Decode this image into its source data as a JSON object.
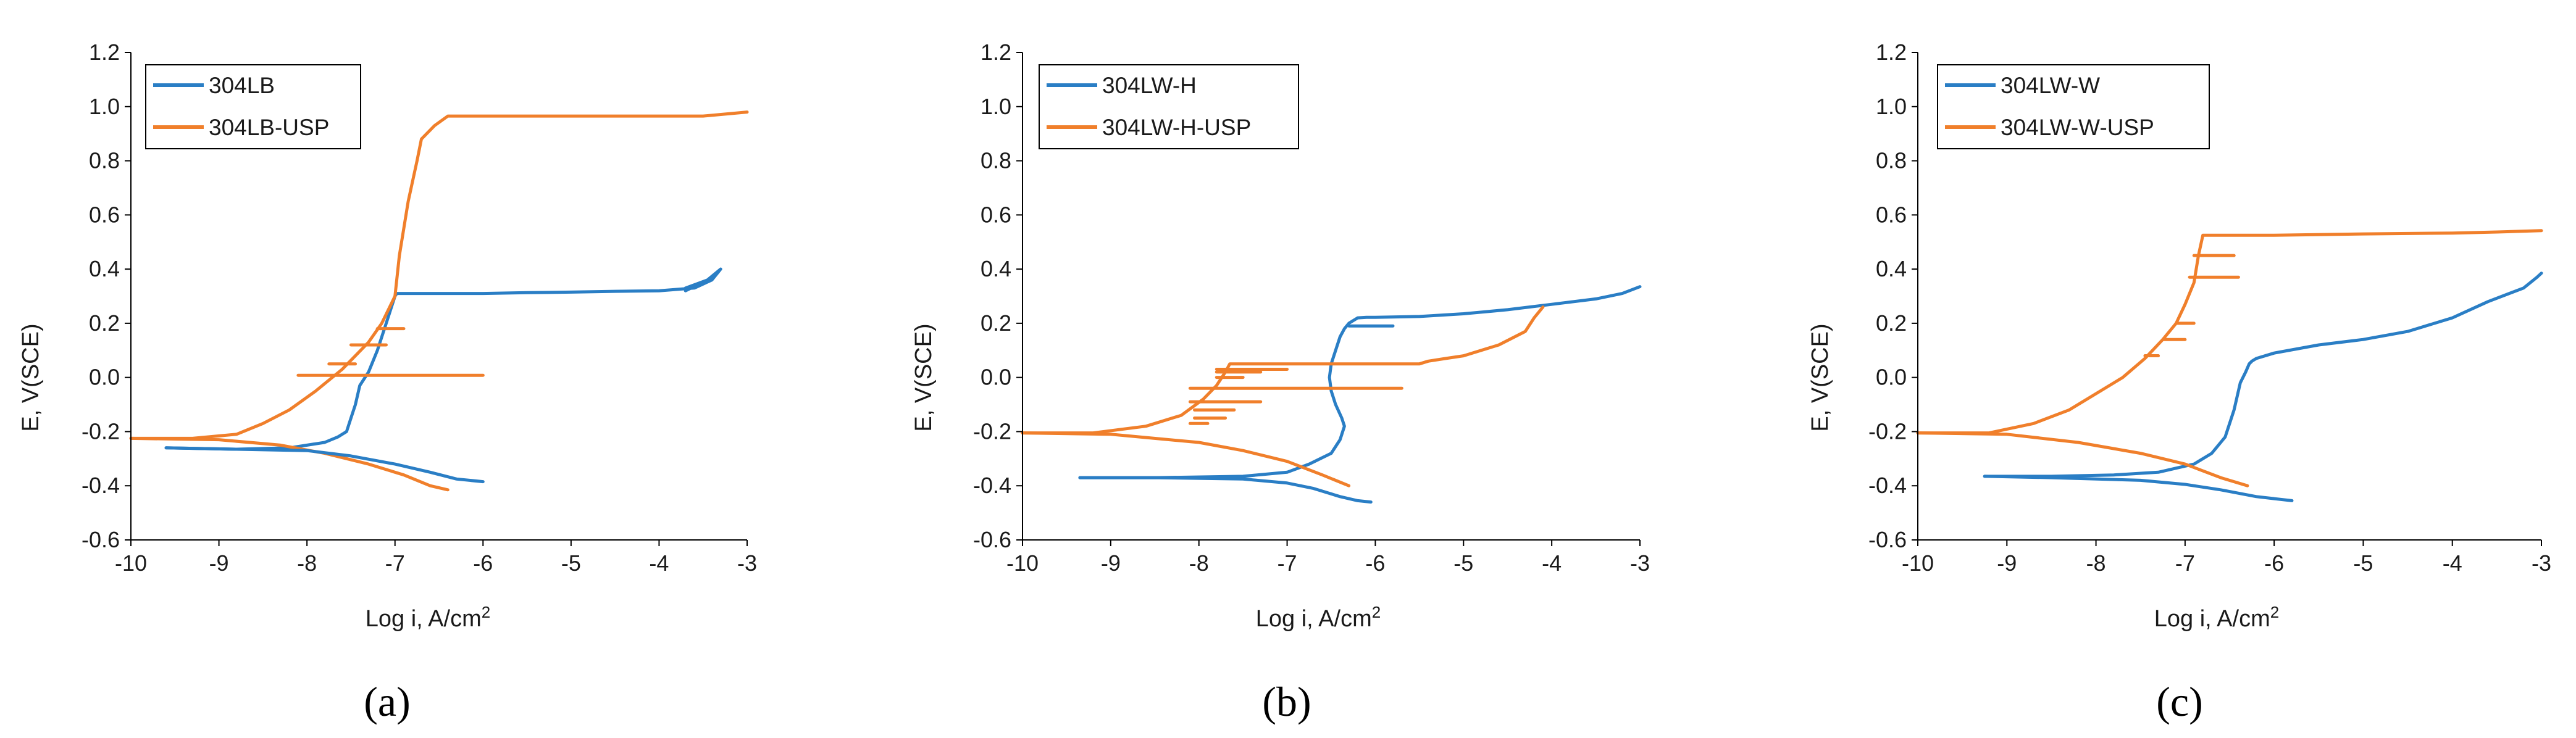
{
  "colors": {
    "series1": "#2a7ec5",
    "series2": "#f07f2b",
    "axis": "#000000",
    "text": "#1a1a1a"
  },
  "chart_data": [
    {
      "type": "line",
      "panel_label": "(a)",
      "xlabel": "Log i, A/cm",
      "xlabel_sup": "2",
      "ylabel": "E, V(SCE)",
      "xlim": [
        -10,
        -3
      ],
      "ylim": [
        -0.6,
        1.2
      ],
      "xticks": [
        "-10",
        "-9",
        "-8",
        "-7",
        "-6",
        "-5",
        "-4",
        "-3"
      ],
      "yticks": [
        "-0.6",
        "-0.4",
        "-0.2",
        "0.0",
        "0.2",
        "0.4",
        "0.6",
        "0.8",
        "1.0",
        "1.2"
      ],
      "legend": "top-left",
      "series": [
        {
          "name": "304LB",
          "color": "#2a7ec5",
          "x": [
            -9.6,
            -8.8,
            -8.2,
            -7.8,
            -7.65,
            -7.55,
            -7.5,
            -7.45,
            -7.4,
            -7.3,
            -7.2,
            -7.1,
            -7.0,
            -6.98,
            -6.5,
            -6.0,
            -5.5,
            -5.0,
            -4.5,
            -4.0,
            -3.6,
            -3.4,
            -3.3,
            -3.45,
            -3.7,
            -3.7,
            -3.45,
            -3.3
          ],
          "y": [
            -0.26,
            -0.265,
            -0.26,
            -0.24,
            -0.22,
            -0.2,
            -0.15,
            -0.1,
            -0.03,
            0.02,
            0.1,
            0.2,
            0.3,
            0.31,
            0.31,
            0.31,
            0.313,
            0.315,
            0.318,
            0.32,
            0.33,
            0.36,
            0.4,
            0.36,
            0.33,
            0.32,
            0.36,
            0.4
          ]
        },
        {
          "name": "304LB-USP",
          "color": "#f07f2b",
          "x": [
            -10.0,
            -9.3,
            -8.8,
            -8.5,
            -8.2,
            -7.9,
            -7.6,
            -7.3,
            -7.15,
            -7.0,
            -6.95,
            -6.85,
            -6.75,
            -6.7,
            -6.55,
            -6.4,
            -5.0,
            -4.0,
            -3.5,
            -3.0
          ],
          "y": [
            -0.225,
            -0.225,
            -0.21,
            -0.17,
            -0.12,
            -0.05,
            0.03,
            0.13,
            0.2,
            0.3,
            0.45,
            0.65,
            0.8,
            0.88,
            0.93,
            0.965,
            0.965,
            0.965,
            0.965,
            0.98
          ]
        },
        {
          "name": "304LB-USP",
          "color": "#f07f2b",
          "x": [
            -10.0,
            -9.0,
            -8.3,
            -7.8,
            -7.3,
            -6.9,
            -6.6,
            -6.4
          ],
          "y": [
            -0.225,
            -0.23,
            -0.25,
            -0.28,
            -0.32,
            -0.36,
            -0.4,
            -0.415
          ]
        },
        {
          "name": "304LB",
          "color": "#2a7ec5",
          "x": [
            -9.6,
            -8.8,
            -8.0,
            -7.5,
            -7.0,
            -6.6,
            -6.3,
            -6.0
          ],
          "y": [
            -0.26,
            -0.265,
            -0.27,
            -0.29,
            -0.32,
            -0.35,
            -0.375,
            -0.385
          ]
        },
        {
          "name": "304LB-USP",
          "color": "#f07f2b",
          "x": [
            -8.1,
            -6.0
          ],
          "y": [
            0.008,
            0.008
          ]
        }
      ]
    },
    {
      "type": "line",
      "panel_label": "(b)",
      "xlabel": "Log i, A/cm",
      "xlabel_sup": "2",
      "ylabel": "E, V(SCE)",
      "xlim": [
        -10,
        -3
      ],
      "ylim": [
        -0.6,
        1.2
      ],
      "xticks": [
        "-10",
        "-9",
        "-8",
        "-7",
        "-6",
        "-5",
        "-4",
        "-3"
      ],
      "yticks": [
        "-0.6",
        "-0.4",
        "-0.2",
        "0.0",
        "0.2",
        "0.4",
        "0.6",
        "0.8",
        "1.0",
        "1.2"
      ],
      "legend": "top-left",
      "series": [
        {
          "name": "304LW-H",
          "color": "#2a7ec5",
          "x": [
            -9.35,
            -8.5,
            -7.5,
            -7.0,
            -6.75,
            -6.5,
            -6.4,
            -6.35,
            -6.38,
            -6.45,
            -6.5,
            -6.52,
            -6.5,
            -6.45,
            -6.4,
            -6.35,
            -6.3,
            -6.2,
            -6.1,
            -6.0,
            -5.5,
            -5.0,
            -4.5,
            -4.0,
            -3.5,
            -3.2,
            -3.0
          ],
          "y": [
            -0.37,
            -0.37,
            -0.365,
            -0.35,
            -0.32,
            -0.28,
            -0.23,
            -0.18,
            -0.15,
            -0.1,
            -0.05,
            0.0,
            0.05,
            0.1,
            0.15,
            0.18,
            0.2,
            0.22,
            0.222,
            0.222,
            0.225,
            0.235,
            0.25,
            0.27,
            0.29,
            0.31,
            0.335
          ]
        },
        {
          "name": "304LW-H",
          "color": "#2a7ec5",
          "x": [
            -9.35,
            -8.5,
            -7.5,
            -7.0,
            -6.7,
            -6.4,
            -6.2,
            -6.05
          ],
          "y": [
            -0.37,
            -0.37,
            -0.375,
            -0.39,
            -0.41,
            -0.44,
            -0.455,
            -0.46
          ]
        },
        {
          "name": "304LW-H-USP",
          "color": "#f07f2b",
          "x": [
            -10.0,
            -9.2,
            -8.6,
            -8.2,
            -7.95,
            -7.8,
            -7.7,
            -7.65,
            -7.5,
            -7.0,
            -6.5,
            -6.0,
            -5.5,
            -5.4,
            -5.2,
            -5.0,
            -4.6,
            -4.3,
            -4.2,
            -4.1
          ],
          "y": [
            -0.205,
            -0.205,
            -0.18,
            -0.14,
            -0.08,
            -0.03,
            0.02,
            0.05,
            0.05,
            0.05,
            0.05,
            0.05,
            0.05,
            0.06,
            0.07,
            0.08,
            0.12,
            0.17,
            0.22,
            0.26
          ]
        },
        {
          "name": "304LW-H-USP",
          "color": "#f07f2b",
          "x": [
            -10.0,
            -9.0,
            -8.0,
            -7.5,
            -7.0,
            -6.6,
            -6.3
          ],
          "y": [
            -0.205,
            -0.21,
            -0.24,
            -0.27,
            -0.31,
            -0.36,
            -0.4
          ]
        },
        {
          "name": "304LW-H-USP",
          "color": "#f07f2b",
          "x": [
            -8.1,
            -5.7
          ],
          "y": [
            -0.04,
            -0.04
          ]
        }
      ]
    },
    {
      "type": "line",
      "panel_label": "(c)",
      "xlabel": "Log i, A/cm",
      "xlabel_sup": "2",
      "ylabel": "E, V(SCE)",
      "xlim": [
        -10,
        -3
      ],
      "ylim": [
        -0.6,
        1.2
      ],
      "xticks": [
        "-10",
        "-9",
        "-8",
        "-7",
        "-6",
        "-5",
        "-4",
        "-3"
      ],
      "yticks": [
        "-0.6",
        "-0.4",
        "-0.2",
        "0.0",
        "0.2",
        "0.4",
        "0.6",
        "0.8",
        "1.0",
        "1.2"
      ],
      "legend": "top-left",
      "series": [
        {
          "name": "304LW-W",
          "color": "#2a7ec5",
          "x": [
            -9.25,
            -8.5,
            -7.8,
            -7.3,
            -6.9,
            -6.7,
            -6.55,
            -6.45,
            -6.38,
            -6.32,
            -6.28,
            -6.25,
            -6.2,
            -6.0,
            -5.5,
            -5.0,
            -4.5,
            -4.0,
            -3.6,
            -3.2,
            -3.05,
            -3.0
          ],
          "y": [
            -0.365,
            -0.365,
            -0.36,
            -0.35,
            -0.32,
            -0.28,
            -0.22,
            -0.12,
            -0.02,
            0.02,
            0.05,
            0.06,
            0.07,
            0.09,
            0.12,
            0.14,
            0.17,
            0.22,
            0.28,
            0.33,
            0.37,
            0.385
          ]
        },
        {
          "name": "304LW-W",
          "color": "#2a7ec5",
          "x": [
            -9.25,
            -8.5,
            -7.5,
            -7.0,
            -6.6,
            -6.2,
            -5.8
          ],
          "y": [
            -0.365,
            -0.37,
            -0.38,
            -0.395,
            -0.415,
            -0.44,
            -0.455
          ]
        },
        {
          "name": "304LW-W-USP",
          "color": "#f07f2b",
          "x": [
            -10.0,
            -9.2,
            -8.7,
            -8.3,
            -8.0,
            -7.7,
            -7.45,
            -7.25,
            -7.1,
            -7.0,
            -6.9,
            -6.85,
            -6.8,
            -6.5,
            -6.0,
            -5.0,
            -4.0,
            -3.5,
            -3.0
          ],
          "y": [
            -0.205,
            -0.205,
            -0.17,
            -0.12,
            -0.06,
            0.0,
            0.07,
            0.14,
            0.2,
            0.27,
            0.35,
            0.45,
            0.525,
            0.525,
            0.525,
            0.53,
            0.533,
            0.537,
            0.542
          ]
        },
        {
          "name": "304LW-W-USP",
          "color": "#f07f2b",
          "x": [
            -10.0,
            -9.0,
            -8.2,
            -7.5,
            -7.0,
            -6.6,
            -6.3
          ],
          "y": [
            -0.205,
            -0.21,
            -0.24,
            -0.28,
            -0.32,
            -0.37,
            -0.4
          ]
        }
      ]
    }
  ],
  "annotations": [
    {
      "panel": 0,
      "y_data": [
        0.05,
        0.12,
        0.18
      ],
      "x_start": [
        -7.75,
        -7.5,
        -7.2
      ],
      "x_end": [
        -7.45,
        -7.1,
        -6.9
      ],
      "color": "#f07f2b"
    },
    {
      "panel": 1,
      "y_data": [
        -0.09,
        -0.12,
        -0.15,
        -0.17,
        0.03,
        0.02,
        0.0
      ],
      "x_start": [
        -8.1,
        -8.05,
        -8.05,
        -8.1,
        -7.8,
        -7.8,
        -7.8
      ],
      "x_end": [
        -7.3,
        -7.6,
        -7.7,
        -7.9,
        -7.0,
        -7.3,
        -7.5
      ],
      "color": "#f07f2b"
    },
    {
      "panel": 1,
      "y_data": [
        0.19
      ],
      "x_start": [
        -6.3
      ],
      "x_end": [
        -5.8
      ],
      "color": "#2a7ec5"
    },
    {
      "panel": 2,
      "y_data": [
        0.45,
        0.37,
        0.2,
        0.14,
        0.08
      ],
      "x_start": [
        -6.9,
        -6.95,
        -7.1,
        -7.25,
        -7.45
      ],
      "x_end": [
        -6.45,
        -6.4,
        -6.9,
        -7.0,
        -7.3
      ],
      "color": "#f07f2b"
    }
  ]
}
